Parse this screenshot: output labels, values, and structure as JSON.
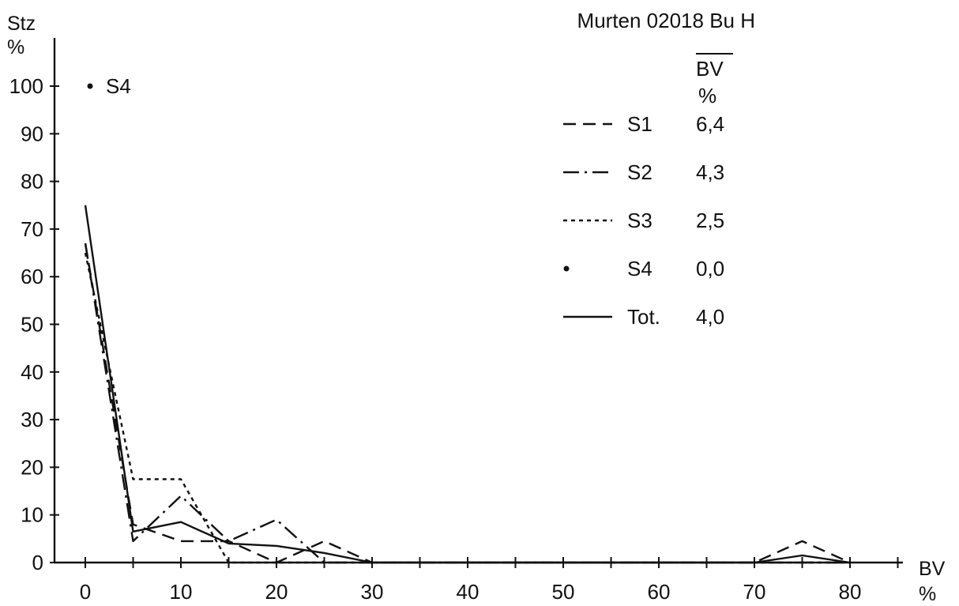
{
  "chart_data": {
    "type": "line",
    "title": "Murten 02018 Bu H",
    "ylabel": "Stz",
    "ylabel_unit": "%",
    "xlabel": "BV",
    "xlabel_unit": "%",
    "xlim": [
      0,
      85
    ],
    "ylim": [
      0,
      105
    ],
    "x_ticks": [
      0,
      10,
      20,
      30,
      40,
      50,
      60,
      70,
      80
    ],
    "y_ticks": [
      0,
      10,
      20,
      30,
      40,
      50,
      60,
      70,
      80,
      90,
      100
    ],
    "grid": false,
    "legend_position": "top-right",
    "legend_header": "BV",
    "legend_header_unit": "%",
    "series": [
      {
        "name": "S1",
        "style": "dashed",
        "mean": "6,4",
        "points": [
          [
            0,
            67
          ],
          [
            5,
            8
          ],
          [
            10,
            4.5
          ],
          [
            15,
            4.5
          ],
          [
            20,
            0
          ],
          [
            25,
            4.5
          ],
          [
            30,
            0
          ],
          [
            70,
            0
          ],
          [
            75,
            4.5
          ],
          [
            80,
            0
          ]
        ]
      },
      {
        "name": "S2",
        "style": "dashdot",
        "mean": "4,3",
        "points": [
          [
            0,
            67
          ],
          [
            5,
            4.5
          ],
          [
            10,
            14
          ],
          [
            15,
            4.5
          ],
          [
            20,
            9
          ],
          [
            25,
            0
          ],
          [
            30,
            0
          ],
          [
            70,
            0
          ],
          [
            75,
            0
          ],
          [
            80,
            0
          ]
        ]
      },
      {
        "name": "S3",
        "style": "dotted",
        "mean": "2,5",
        "points": [
          [
            0,
            65
          ],
          [
            5,
            17.5
          ],
          [
            10,
            17.5
          ],
          [
            15,
            0
          ],
          [
            20,
            0
          ],
          [
            30,
            0
          ],
          [
            80,
            0
          ]
        ]
      },
      {
        "name": "S4",
        "style": "point",
        "mean": "0,0",
        "point_label": "S4",
        "points": [
          [
            0,
            100
          ]
        ]
      },
      {
        "name": "Tot.",
        "style": "solid",
        "mean": "4,0",
        "points": [
          [
            0,
            75
          ],
          [
            5,
            6.5
          ],
          [
            10,
            8.5
          ],
          [
            15,
            4
          ],
          [
            20,
            3.5
          ],
          [
            25,
            2
          ],
          [
            30,
            0
          ],
          [
            70,
            0
          ],
          [
            75,
            1.5
          ],
          [
            80,
            0
          ]
        ]
      }
    ]
  }
}
